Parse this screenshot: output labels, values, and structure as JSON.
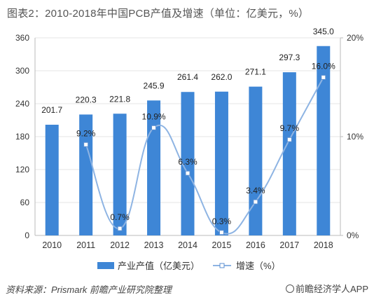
{
  "header": {
    "title": "图表2：2010-2018年中国PCB产值及增速（单位：亿美元，%）"
  },
  "chart_data": {
    "type": "bar",
    "categories": [
      "2010",
      "2011",
      "2012",
      "2013",
      "2014",
      "2015",
      "2016",
      "2017",
      "2018"
    ],
    "series": [
      {
        "name": "产业产值（亿美元）",
        "type": "bar",
        "axis": "left",
        "values": [
          201.7,
          220.3,
          221.8,
          245.9,
          261.4,
          262.0,
          271.1,
          297.3,
          345.0
        ],
        "labels": [
          "201.7",
          "220.3",
          "221.8",
          "245.9",
          "261.4",
          "262.0",
          "271.1",
          "297.3",
          "345.0"
        ]
      },
      {
        "name": "增速（%）",
        "type": "line",
        "axis": "right",
        "values": [
          null,
          9.2,
          0.7,
          10.9,
          6.3,
          0.3,
          3.4,
          9.7,
          16.0
        ],
        "labels": [
          "",
          "9.2%",
          "0.7%",
          "10.9%",
          "6.3%",
          "0.3%",
          "3.4%",
          "9.7%",
          "16.0%"
        ]
      }
    ],
    "y_left": {
      "range": [
        0,
        360
      ],
      "ticks": [
        "0",
        "60",
        "120",
        "180",
        "240",
        "300",
        "360"
      ]
    },
    "y_right": {
      "range": [
        0,
        20
      ],
      "ticks": [
        "0%",
        "10%",
        "20%"
      ]
    },
    "legend": {
      "placement": "bottom-center"
    },
    "colors": {
      "bar": "#3e86d6",
      "line": "#8eb4e3",
      "marker_fill": "#ffffff",
      "marker_stroke": "#5b8fd0"
    }
  },
  "footer": {
    "source": "资料来源：Prismark  前瞻产业研究院整理",
    "brand": "前瞻经济学人APP"
  }
}
